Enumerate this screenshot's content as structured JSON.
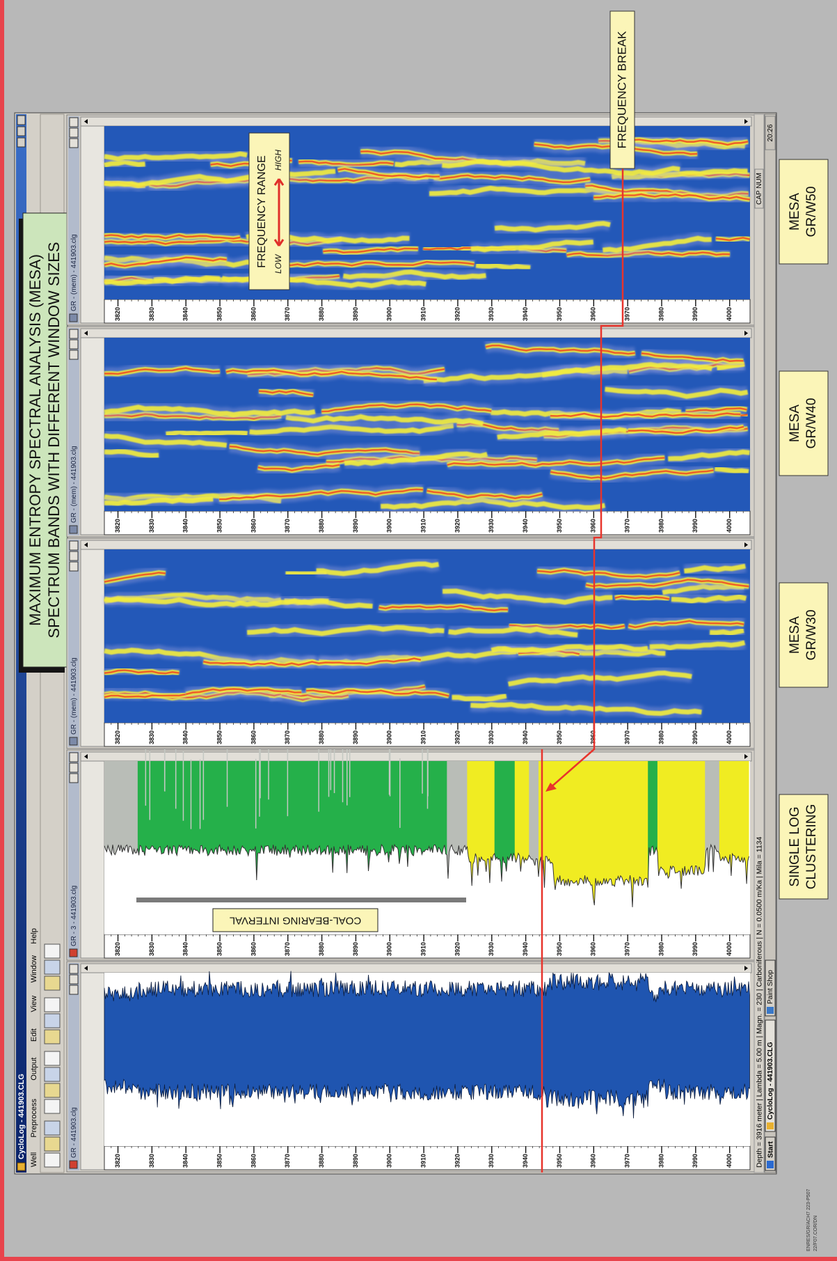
{
  "window": {
    "title": "CycloLog - 441903.CLG",
    "menu": [
      "Well",
      "Preprocess",
      "Output",
      "Edit",
      "View",
      "Window",
      "Help"
    ]
  },
  "heading": [
    "MAXIMUM ENTROPY SPECTRAL ANALYSIS (MESA)",
    "SPECTRUM BANDS WITH DIFFERENT WINDOW SIZES"
  ],
  "panels": [
    {
      "title": "GR - 441903.clg",
      "depth_range": [
        3816,
        4006
      ],
      "depth_ticks": [
        3820,
        3830,
        3840,
        3850,
        3860,
        3870,
        3880,
        3890,
        3900,
        3910,
        3920,
        3930,
        3940,
        3950,
        3960,
        3970,
        3980,
        3990,
        4000
      ]
    },
    {
      "title": "GR - 3 - 441903.clg",
      "depth_range": [
        3816,
        4006
      ],
      "depth_ticks": [
        3820,
        3830,
        3840,
        3850,
        3860,
        3870,
        3880,
        3890,
        3900,
        3910,
        3920,
        3930,
        3940,
        3950,
        3960,
        3970,
        3980,
        3990,
        4000
      ],
      "caption": [
        "SINGLE LOG",
        "CLUSTERING"
      ]
    },
    {
      "title": "GR - (mem) - 441903.clg",
      "depth_range": [
        3816,
        4006
      ],
      "depth_ticks": [
        3820,
        3830,
        3840,
        3850,
        3860,
        3870,
        3880,
        3890,
        3900,
        3910,
        3920,
        3930,
        3940,
        3950,
        3960,
        3970,
        3980,
        3990,
        4000
      ],
      "caption": [
        "MESA",
        "GR/W30"
      ]
    },
    {
      "title": "GR - (mem) - 441903.clg",
      "depth_range": [
        3816,
        4006
      ],
      "depth_ticks": [
        3820,
        3830,
        3840,
        3850,
        3860,
        3870,
        3880,
        3890,
        3900,
        3910,
        3920,
        3930,
        3940,
        3950,
        3960,
        3970,
        3980,
        3990,
        4000
      ],
      "caption": [
        "MESA",
        "GR/W40"
      ]
    },
    {
      "title": "GR - (mem) - 441903.clg",
      "depth_range": [
        3816,
        4006
      ],
      "depth_ticks": [
        3820,
        3830,
        3840,
        3850,
        3860,
        3870,
        3880,
        3890,
        3900,
        3910,
        3920,
        3930,
        3940,
        3950,
        3960,
        3970,
        3980,
        3990,
        4000
      ],
      "caption": [
        "MESA",
        "GR/W50"
      ]
    }
  ],
  "annotations": {
    "coal_bearing_interval": "COAL-BEARING INTERVAL",
    "frequency_range": "FREQUENCY RANGE",
    "low": "LOW",
    "high": "HIGH",
    "frequency_break": "FREQUENCY BREAK"
  },
  "status_bar": {
    "text": "Depth = 3916 meter | Lambda = 5.00 m | Magn. = 230 | Carboniferous | N = 0.0500 m/Ka | Mila = 1134",
    "indicators": "CAP NUM"
  },
  "taskbar": {
    "start": "Start",
    "items": [
      "CycloLog - 441903.CLG",
      "Paint Shop"
    ],
    "clock": "20:26"
  },
  "footer_code": [
    "ENRES/GR/ACH7 223-P507",
    "22/F07.COR/DN"
  ]
}
